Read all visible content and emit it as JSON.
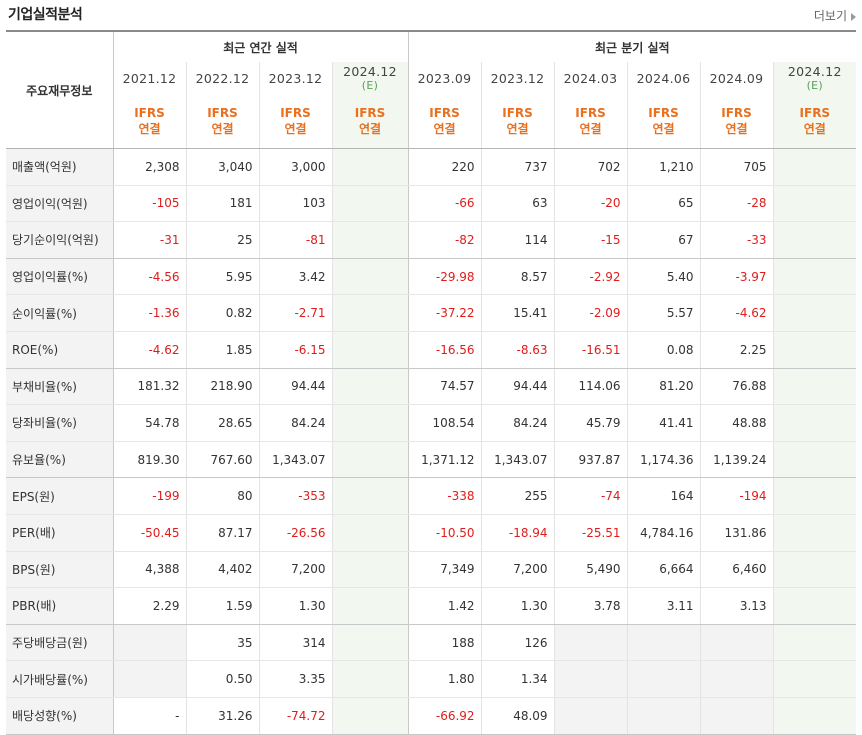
{
  "header": {
    "title": "기업실적분석",
    "more_label": "더보기"
  },
  "groups": {
    "annual": "최근 연간 실적",
    "quarterly": "최근 분기 실적"
  },
  "label_header": "주요재무정보",
  "periods": [
    {
      "date": "2021.12",
      "est": "",
      "std": "IFRS",
      "type": "연결"
    },
    {
      "date": "2022.12",
      "est": "",
      "std": "IFRS",
      "type": "연결"
    },
    {
      "date": "2023.12",
      "est": "",
      "std": "IFRS",
      "type": "연결"
    },
    {
      "date": "2024.12",
      "est": "(E)",
      "std": "IFRS",
      "type": "연결"
    },
    {
      "date": "2023.09",
      "est": "",
      "std": "IFRS",
      "type": "연결"
    },
    {
      "date": "2023.12",
      "est": "",
      "std": "IFRS",
      "type": "연결"
    },
    {
      "date": "2024.03",
      "est": "",
      "std": "IFRS",
      "type": "연결"
    },
    {
      "date": "2024.06",
      "est": "",
      "std": "IFRS",
      "type": "연결"
    },
    {
      "date": "2024.09",
      "est": "",
      "std": "IFRS",
      "type": "연결"
    },
    {
      "date": "2024.12",
      "est": "(E)",
      "std": "IFRS",
      "type": "연결"
    }
  ],
  "rows": [
    {
      "label": "매출액(억원)",
      "values": [
        "2,308",
        "3,040",
        "3,000",
        "",
        "220",
        "737",
        "702",
        "1,210",
        "705",
        ""
      ]
    },
    {
      "label": "영업이익(억원)",
      "values": [
        "-105",
        "181",
        "103",
        "",
        "-66",
        "63",
        "-20",
        "65",
        "-28",
        ""
      ]
    },
    {
      "label": "당기순이익(억원)",
      "values": [
        "-31",
        "25",
        "-81",
        "",
        "-82",
        "114",
        "-15",
        "67",
        "-33",
        ""
      ]
    },
    {
      "label": "영업이익률(%)",
      "values": [
        "-4.56",
        "5.95",
        "3.42",
        "",
        "-29.98",
        "8.57",
        "-2.92",
        "5.40",
        "-3.97",
        ""
      ]
    },
    {
      "label": "순이익률(%)",
      "values": [
        "-1.36",
        "0.82",
        "-2.71",
        "",
        "-37.22",
        "15.41",
        "-2.09",
        "5.57",
        "-4.62",
        ""
      ]
    },
    {
      "label": "ROE(%)",
      "values": [
        "-4.62",
        "1.85",
        "-6.15",
        "",
        "-16.56",
        "-8.63",
        "-16.51",
        "0.08",
        "2.25",
        ""
      ]
    },
    {
      "label": "부채비율(%)",
      "values": [
        "181.32",
        "218.90",
        "94.44",
        "",
        "74.57",
        "94.44",
        "114.06",
        "81.20",
        "76.88",
        ""
      ]
    },
    {
      "label": "당좌비율(%)",
      "values": [
        "54.78",
        "28.65",
        "84.24",
        "",
        "108.54",
        "84.24",
        "45.79",
        "41.41",
        "48.88",
        ""
      ]
    },
    {
      "label": "유보율(%)",
      "values": [
        "819.30",
        "767.60",
        "1,343.07",
        "",
        "1,371.12",
        "1,343.07",
        "937.87",
        "1,174.36",
        "1,139.24",
        ""
      ]
    },
    {
      "label": "EPS(원)",
      "values": [
        "-199",
        "80",
        "-353",
        "",
        "-338",
        "255",
        "-74",
        "164",
        "-194",
        ""
      ]
    },
    {
      "label": "PER(배)",
      "values": [
        "-50.45",
        "87.17",
        "-26.56",
        "",
        "-10.50",
        "-18.94",
        "-25.51",
        "4,784.16",
        "131.86",
        ""
      ]
    },
    {
      "label": "BPS(원)",
      "values": [
        "4,388",
        "4,402",
        "7,200",
        "",
        "7,349",
        "7,200",
        "5,490",
        "6,664",
        "6,460",
        ""
      ]
    },
    {
      "label": "PBR(배)",
      "values": [
        "2.29",
        "1.59",
        "1.30",
        "",
        "1.42",
        "1.30",
        "3.78",
        "3.11",
        "3.13",
        ""
      ]
    },
    {
      "label": "주당배당금(원)",
      "values": [
        "",
        "35",
        "314",
        "",
        "188",
        "126",
        "",
        "",
        "",
        ""
      ]
    },
    {
      "label": "시가배당률(%)",
      "values": [
        "",
        "0.50",
        "3.35",
        "",
        "1.80",
        "1.34",
        "",
        "",
        "",
        ""
      ]
    },
    {
      "label": "배당성향(%)",
      "values": [
        "-",
        "31.26",
        "-74.72",
        "",
        "-66.92",
        "48.09",
        "",
        "",
        "",
        ""
      ]
    }
  ],
  "colors": {
    "negative": "#e01c1c",
    "ifrs": "#e8701e",
    "estimate_bg": "#f2f8ef",
    "estimate_text": "#5aa05a"
  }
}
